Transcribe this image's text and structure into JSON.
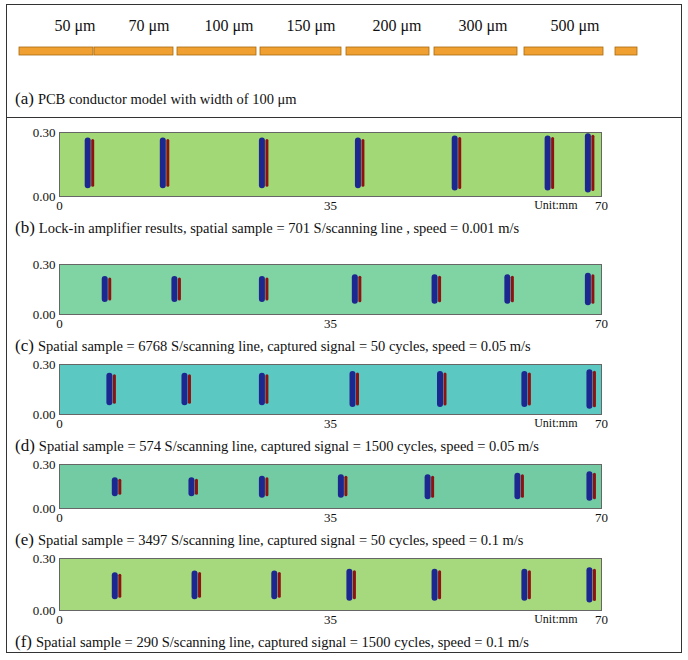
{
  "diagram": {
    "labels": [
      "50 μm",
      "70 μm",
      "100 μm",
      "150 μm",
      "200 μm",
      "300 μm",
      "500 μm"
    ],
    "label": "(a)",
    "caption": "PCB conductor model with width of 100 μm",
    "color": "#f0a030"
  },
  "chart_data": [
    {
      "type": "scatter",
      "marker": "streak",
      "label": "(b)",
      "caption": "Lock-in amplifier results, spatial sample = 701 S/scanning line , speed = 0.001 m/s",
      "xlabel": "Unit:mm",
      "color": "#a3d877",
      "xlim": [
        0,
        70
      ],
      "xticks": [
        0,
        35,
        70
      ],
      "ylim": [
        0,
        0.3
      ],
      "yticks": [
        0,
        0.3
      ],
      "x": [
        3.9,
        13.6,
        26.4,
        38.8,
        51.3,
        63.3,
        68.5
      ],
      "y_ranges": [
        [
          0.05,
          0.26
        ],
        [
          0.05,
          0.26
        ],
        [
          0.05,
          0.26
        ],
        [
          0.05,
          0.26
        ],
        [
          0.04,
          0.27
        ],
        [
          0.04,
          0.27
        ],
        [
          0.03,
          0.28
        ]
      ]
    },
    {
      "type": "scatter",
      "marker": "streak",
      "label": "(c)",
      "caption": "Spatial sample = 6768 S/scanning line, captured signal = 50 cycles, speed = 0.05 m/s",
      "color": "#80d3a2",
      "xlim": [
        0,
        70
      ],
      "xticks": [
        0,
        35,
        70
      ],
      "ylim": [
        0,
        0.3
      ],
      "yticks": [
        0,
        0.3
      ],
      "x": [
        6.1,
        15.1,
        26.4,
        38.4,
        48.7,
        58.1,
        68.5
      ],
      "y_ranges": [
        [
          0.09,
          0.21
        ],
        [
          0.09,
          0.21
        ],
        [
          0.09,
          0.21
        ],
        [
          0.08,
          0.22
        ],
        [
          0.08,
          0.22
        ],
        [
          0.08,
          0.22
        ],
        [
          0.07,
          0.23
        ]
      ]
    },
    {
      "type": "scatter",
      "marker": "streak",
      "label": "(d)",
      "caption": "Spatial sample = 574 S/scanning line, captured signal = 1500 cycles, speed = 0.05 m/s",
      "xlabel": "Unit:mm",
      "color": "#5bc9c2",
      "xlim": [
        0,
        70
      ],
      "xticks": [
        0,
        35,
        70
      ],
      "ylim": [
        0,
        0.3
      ],
      "yticks": [
        0,
        0.3
      ],
      "x": [
        6.7,
        16.4,
        26.4,
        38.1,
        49.4,
        60.3,
        68.7
      ],
      "y_ranges": [
        [
          0.07,
          0.23
        ],
        [
          0.07,
          0.23
        ],
        [
          0.07,
          0.23
        ],
        [
          0.06,
          0.24
        ],
        [
          0.06,
          0.24
        ],
        [
          0.06,
          0.24
        ],
        [
          0.05,
          0.25
        ]
      ]
    },
    {
      "type": "scatter",
      "marker": "streak",
      "label": "(e)",
      "caption": "Spatial sample = 3497 S/scanning line, captured signal = 50 cycles, speed = 0.1 m/s",
      "color": "#72cba3",
      "xlim": [
        0,
        70
      ],
      "xticks": [
        0,
        35,
        70
      ],
      "ylim": [
        0,
        0.3
      ],
      "yticks": [
        0,
        0.3
      ],
      "x": [
        7.4,
        17.3,
        26.4,
        36.6,
        47.8,
        59.4,
        68.7
      ],
      "y_ranges": [
        [
          0.1,
          0.19
        ],
        [
          0.1,
          0.19
        ],
        [
          0.09,
          0.2
        ],
        [
          0.09,
          0.21
        ],
        [
          0.08,
          0.21
        ],
        [
          0.08,
          0.22
        ],
        [
          0.07,
          0.23
        ]
      ]
    },
    {
      "type": "scatter",
      "marker": "streak",
      "label": "(f)",
      "caption": "Spatial sample = 290 S/scanning line, captured signal = 1500 cycles, speed = 0.1 m/s",
      "xlabel": "Unit:mm",
      "color": "#a6d87e",
      "xlim": [
        0,
        70
      ],
      "xticks": [
        0,
        35,
        70
      ],
      "ylim": [
        0,
        0.3
      ],
      "yticks": [
        0,
        0.3
      ],
      "x": [
        7.4,
        17.7,
        28.0,
        37.7,
        48.7,
        60.3,
        68.7
      ],
      "y_ranges": [
        [
          0.08,
          0.2
        ],
        [
          0.08,
          0.21
        ],
        [
          0.08,
          0.21
        ],
        [
          0.07,
          0.22
        ],
        [
          0.07,
          0.22
        ],
        [
          0.07,
          0.22
        ],
        [
          0.06,
          0.23
        ]
      ]
    }
  ]
}
